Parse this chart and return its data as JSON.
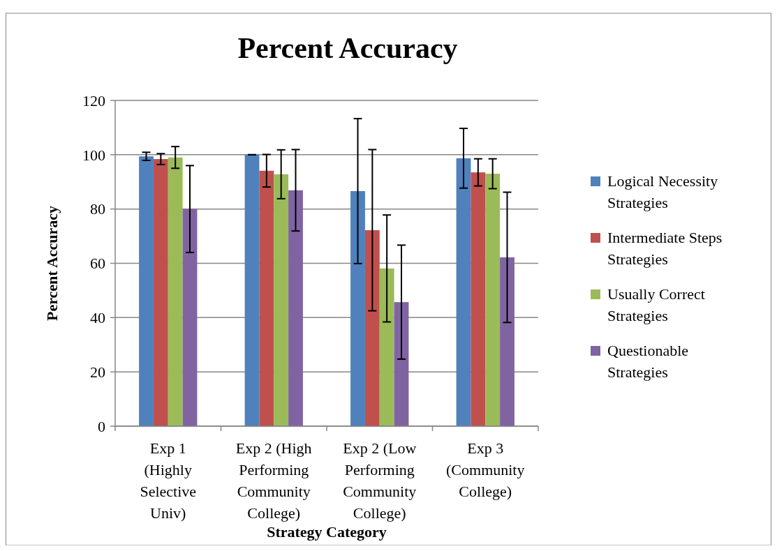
{
  "chart_data": {
    "type": "bar",
    "title": "Percent Accuracy",
    "xlabel": "Strategy Category",
    "ylabel": "Percent Accuracy",
    "categories": [
      "Exp 1 (Highly Selective Univ)",
      "Exp 2 (High Performing Community College)",
      "Exp 2 (Low Performing Community College)",
      "Exp 3 (Community College)"
    ],
    "series": [
      {
        "name": "Logical Necessity Strategies",
        "color": "#4f81bd",
        "values": [
          99.4,
          100,
          86.6,
          98.7
        ],
        "errors": [
          1.5,
          0,
          26.7,
          11
        ]
      },
      {
        "name": "Intermediate Steps Strategies",
        "color": "#c0504d",
        "values": [
          98.4,
          94.1,
          72.2,
          93.5
        ],
        "errors": [
          2,
          6,
          29.7,
          5
        ]
      },
      {
        "name": "Usually Correct Strategies",
        "color": "#9bbb59",
        "values": [
          99,
          92.8,
          58.1,
          93
        ],
        "errors": [
          4,
          9,
          19.7,
          5.5
        ]
      },
      {
        "name": "Questionable Strategies",
        "color": "#8064a2",
        "values": [
          80,
          86.9,
          45.7,
          62.2
        ],
        "errors": [
          16,
          15,
          21,
          24
        ]
      }
    ],
    "ylim": [
      0,
      120
    ],
    "yticks": [
      0,
      20,
      40,
      60,
      80,
      100,
      120
    ],
    "grid": "y",
    "legend": "right"
  }
}
